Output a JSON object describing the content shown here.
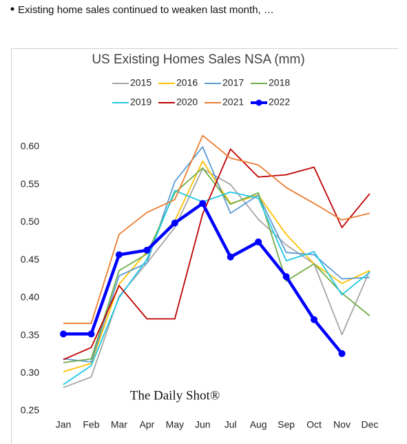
{
  "bullet": "Existing home sales continued to weaken last month, …",
  "chart_data": {
    "type": "line",
    "title": "US Existing Homes Sales NSA (mm)",
    "watermark": "The Daily Shot®",
    "categories": [
      "Jan",
      "Feb",
      "Mar",
      "Apr",
      "May",
      "Jun",
      "Jul",
      "Aug",
      "Sep",
      "Oct",
      "Nov",
      "Dec"
    ],
    "ylim": [
      0.25,
      0.6
    ],
    "yticks": [
      {
        "value": 0.6,
        "label": "0.60"
      },
      0.55,
      {
        "value": 0.5,
        "label": "0.50"
      },
      0.45,
      {
        "value": 0.4,
        "label": "0.40"
      },
      0.35,
      {
        "value": 0.3,
        "label": "0.30"
      },
      0.25
    ],
    "grid": false,
    "legend": "top",
    "series": [
      {
        "name": "2015",
        "color": "#a5a5a5",
        "values": [
          0.281,
          0.295,
          0.402,
          0.446,
          0.493,
          0.571,
          0.55,
          0.504,
          0.47,
          0.445,
          0.351,
          0.436
        ]
      },
      {
        "name": "2016",
        "color": "#ffc000",
        "values": [
          0.302,
          0.313,
          0.418,
          0.461,
          0.502,
          0.581,
          0.525,
          0.536,
          0.484,
          0.445,
          0.419,
          0.436
        ]
      },
      {
        "name": "2017",
        "color": "#5b9bd5",
        "values": [
          0.319,
          0.315,
          0.429,
          0.446,
          0.554,
          0.6,
          0.512,
          0.536,
          0.46,
          0.457,
          0.425,
          0.427
        ]
      },
      {
        "name": "2018",
        "color": "#70ad47",
        "values": [
          0.314,
          0.319,
          0.436,
          0.458,
          0.539,
          0.572,
          0.524,
          0.539,
          0.422,
          0.445,
          0.406,
          0.376
        ]
      },
      {
        "name": "2019",
        "color": "#1fc8e6",
        "values": [
          0.285,
          0.31,
          0.4,
          0.451,
          0.542,
          0.527,
          0.54,
          0.532,
          0.449,
          0.461,
          0.404,
          0.434
        ]
      },
      {
        "name": "2020",
        "color": "#c00000",
        "values": [
          0.318,
          0.334,
          0.416,
          0.372,
          0.372,
          0.511,
          0.597,
          0.56,
          0.563,
          0.573,
          0.493,
          0.538
        ]
      },
      {
        "name": "2021",
        "color": "#ed7d31",
        "values": [
          0.366,
          0.366,
          0.484,
          0.513,
          0.53,
          0.615,
          0.585,
          0.576,
          0.546,
          0.525,
          0.503,
          0.512
        ]
      },
      {
        "name": "2022",
        "color": "#0000ff",
        "markers": true,
        "values": [
          0.352,
          0.352,
          0.457,
          0.463,
          0.499,
          0.525,
          0.454,
          0.474,
          0.428,
          0.371,
          0.326,
          null
        ]
      }
    ]
  }
}
